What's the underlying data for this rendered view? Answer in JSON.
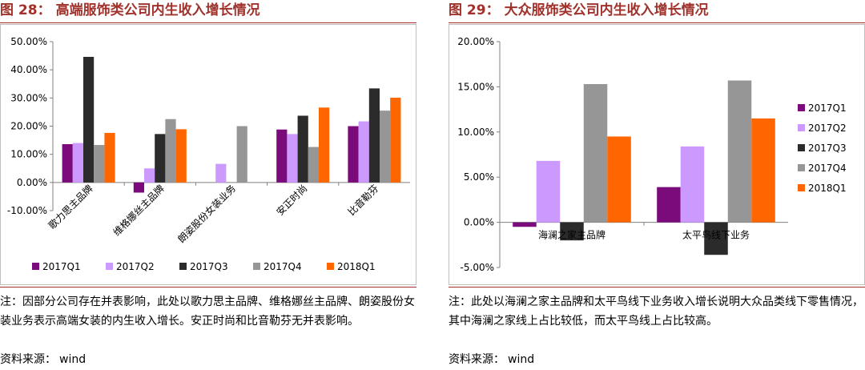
{
  "left": {
    "title_prefix": "图 28：",
    "title": "高端服饰类公司内生收入增长情况",
    "note": "注：因部分公司存在并表影响，此处以歌力思主品牌、维格娜丝主品牌、朗姿股份女装业务表示高端女装的内生收入增长。安正时尚和比音勒芬无并表影响。",
    "source_label": "资料来源：",
    "source_value": "wind"
  },
  "right": {
    "title_prefix": "图 29：",
    "title": "大众服饰类公司内生收入增长情况",
    "note": "注：此处以海澜之家主品牌和太平鸟线下业务收入增长说明大众品类线下零售情况，其中海澜之家线上占比较低，而太平鸟线上占比较高。",
    "source_label": "资料来源：",
    "source_value": "wind"
  },
  "colors": {
    "2017Q1": "#7b0a7b",
    "2017Q2": "#cc99ff",
    "2017Q3": "#2b2b2b",
    "2017Q4": "#969696",
    "2018Q1": "#ff6600",
    "title": "#a1312b"
  },
  "chart_data": [
    {
      "type": "bar",
      "title": "高端服饰类公司内生收入增长情况",
      "categories": [
        "歌力思主品牌",
        "维格娜丝主品牌",
        "朗姿股份女装业务",
        "安正时尚",
        "比音勒芬"
      ],
      "series": [
        {
          "name": "2017Q1",
          "values": [
            0.136,
            -0.036,
            null,
            0.188,
            0.2
          ]
        },
        {
          "name": "2017Q2",
          "values": [
            0.14,
            0.05,
            0.066,
            0.172,
            0.217
          ]
        },
        {
          "name": "2017Q3",
          "values": [
            0.446,
            0.172,
            null,
            0.237,
            0.334
          ]
        },
        {
          "name": "2017Q4",
          "values": [
            0.133,
            0.225,
            0.2,
            0.126,
            0.255
          ]
        },
        {
          "name": "2018Q1",
          "values": [
            0.176,
            0.189,
            null,
            0.266,
            0.301
          ]
        }
      ],
      "ylim": [
        -0.1,
        0.5
      ],
      "yticks": [
        "-10.00%",
        "0.00%",
        "10.00%",
        "20.00%",
        "30.00%",
        "40.00%",
        "50.00%"
      ],
      "legend": "bottom"
    },
    {
      "type": "bar",
      "title": "大众服饰类公司内生收入增长情况",
      "categories": [
        "海澜之家主品牌",
        "太平鸟线下业务"
      ],
      "series": [
        {
          "name": "2017Q1",
          "values": [
            -0.005,
            0.039
          ]
        },
        {
          "name": "2017Q2",
          "values": [
            0.068,
            0.084
          ]
        },
        {
          "name": "2017Q3",
          "values": [
            -0.02,
            -0.036
          ]
        },
        {
          "name": "2017Q4",
          "values": [
            0.153,
            0.157
          ]
        },
        {
          "name": "2018Q1",
          "values": [
            0.095,
            0.115
          ]
        }
      ],
      "ylim": [
        -0.05,
        0.2
      ],
      "yticks": [
        "-5.00%",
        "0.00%",
        "5.00%",
        "10.00%",
        "15.00%",
        "20.00%"
      ],
      "legend": "right"
    }
  ]
}
